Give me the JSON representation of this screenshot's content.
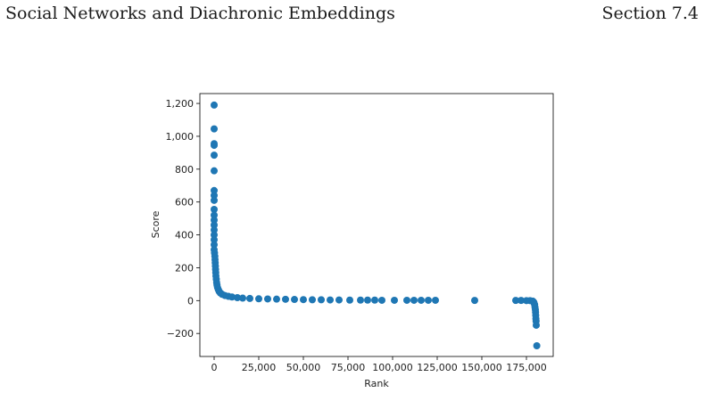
{
  "header": {
    "left_title": "Social Networks and Diachronic Embeddings",
    "right_section": "Section 7.4"
  },
  "chart_data": {
    "type": "scatter",
    "title": "",
    "xlabel": "Rank",
    "ylabel": "Score",
    "xlim": [
      -8000,
      190000
    ],
    "ylim": [
      -340,
      1260
    ],
    "x_ticks": [
      0,
      25000,
      50000,
      75000,
      100000,
      125000,
      150000,
      175000
    ],
    "x_tick_labels": [
      "0",
      "25,000",
      "50,000",
      "75,000",
      "100,000",
      "125,000",
      "150,000",
      "175,000"
    ],
    "y_ticks": [
      -200,
      0,
      200,
      400,
      600,
      800,
      1000,
      1200
    ],
    "y_tick_labels": [
      "−200",
      "0",
      "200",
      "400",
      "600",
      "800",
      "1,000",
      "1,200"
    ],
    "grid": false,
    "marker_color": "#1f77b4",
    "series": [
      {
        "points": [
          [
            0,
            1190
          ],
          [
            0,
            1045
          ],
          [
            0,
            955
          ],
          [
            0,
            945
          ],
          [
            0,
            885
          ],
          [
            0,
            790
          ],
          [
            0,
            670
          ],
          [
            0,
            640
          ],
          [
            0,
            610
          ],
          [
            0,
            555
          ],
          [
            0,
            520
          ],
          [
            0,
            490
          ],
          [
            0,
            460
          ],
          [
            0,
            430
          ],
          [
            0,
            400
          ],
          [
            0,
            370
          ],
          [
            0,
            340
          ],
          [
            0,
            310
          ],
          [
            200,
            290
          ],
          [
            400,
            270
          ],
          [
            500,
            250
          ],
          [
            600,
            230
          ],
          [
            700,
            210
          ],
          [
            800,
            190
          ],
          [
            900,
            170
          ],
          [
            1000,
            150
          ],
          [
            1200,
            130
          ],
          [
            1400,
            110
          ],
          [
            1600,
            95
          ],
          [
            1900,
            80
          ],
          [
            2300,
            68
          ],
          [
            2800,
            56
          ],
          [
            3500,
            46
          ],
          [
            4500,
            38
          ],
          [
            6000,
            31
          ],
          [
            8000,
            26
          ],
          [
            10000,
            22
          ],
          [
            13000,
            18
          ],
          [
            16000,
            15
          ],
          [
            20000,
            13
          ],
          [
            25000,
            11
          ],
          [
            30000,
            10
          ],
          [
            35000,
            9
          ],
          [
            40000,
            8
          ],
          [
            45000,
            7
          ],
          [
            50000,
            6
          ],
          [
            55000,
            5
          ],
          [
            60000,
            5
          ],
          [
            65000,
            4
          ],
          [
            70000,
            4
          ],
          [
            76000,
            3
          ],
          [
            82000,
            3
          ],
          [
            86000,
            3
          ],
          [
            90000,
            3
          ],
          [
            94000,
            2
          ],
          [
            101000,
            2
          ],
          [
            108000,
            2
          ],
          [
            112000,
            2
          ],
          [
            116000,
            2
          ],
          [
            120000,
            2
          ],
          [
            124000,
            2
          ],
          [
            146000,
            1
          ],
          [
            169000,
            1
          ],
          [
            172000,
            1
          ],
          [
            175000,
            0
          ],
          [
            177000,
            0
          ],
          [
            178500,
            -3
          ],
          [
            179000,
            -8
          ],
          [
            179300,
            -15
          ],
          [
            179600,
            -25
          ],
          [
            179800,
            -40
          ],
          [
            180000,
            -55
          ],
          [
            180100,
            -70
          ],
          [
            180200,
            -90
          ],
          [
            180300,
            -110
          ],
          [
            180400,
            -125
          ],
          [
            180500,
            -150
          ],
          [
            180800,
            -275
          ]
        ]
      }
    ]
  }
}
